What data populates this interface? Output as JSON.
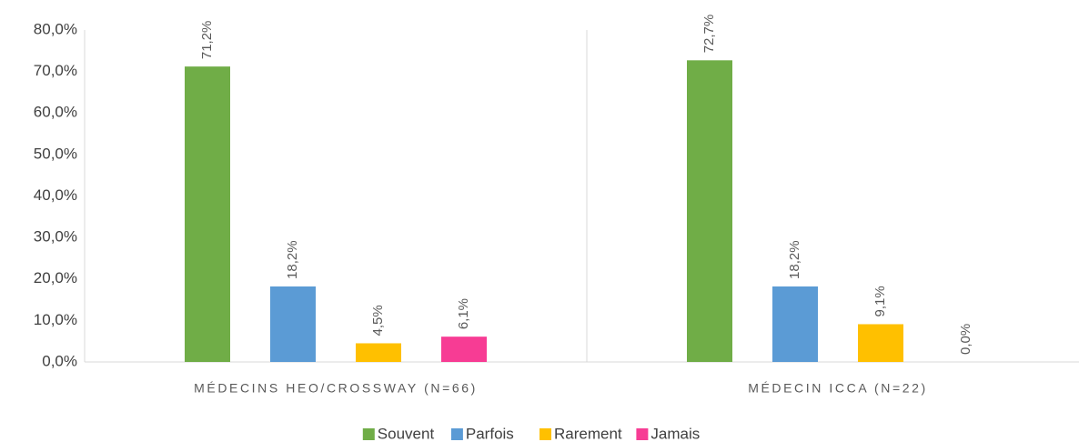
{
  "chart_data": {
    "type": "bar",
    "categories": [
      "MÉDECINS HEO/CROSSWAY (N=66)",
      "MÉDECIN ICCA (N=22)"
    ],
    "series": [
      {
        "name": "Souvent",
        "color": "#70ad47",
        "values": [
          71.2,
          72.7
        ],
        "value_labels": [
          "71,2%",
          "72,7%"
        ]
      },
      {
        "name": "Parfois",
        "color": "#5b9bd5",
        "values": [
          18.2,
          18.2
        ],
        "value_labels": [
          "18,2%",
          "18,2%"
        ]
      },
      {
        "name": "Rarement",
        "color": "#ffc000",
        "values": [
          4.5,
          9.1
        ],
        "value_labels": [
          "4,5%",
          "9,1%"
        ]
      },
      {
        "name": "Jamais",
        "color": "#f73c94",
        "values": [
          6.1,
          0.0
        ],
        "value_labels": [
          "6,1%",
          "0,0%"
        ]
      }
    ],
    "ylim": [
      0,
      80
    ],
    "yticks": [
      {
        "value": 0,
        "label": "0,0%"
      },
      {
        "value": 10,
        "label": "10,0%"
      },
      {
        "value": 20,
        "label": "20,0%"
      },
      {
        "value": 30,
        "label": "30,0%"
      },
      {
        "value": 40,
        "label": "40,0%"
      },
      {
        "value": 50,
        "label": "50,0%"
      },
      {
        "value": 60,
        "label": "60,0%"
      },
      {
        "value": 70,
        "label": "70,0%"
      },
      {
        "value": 80,
        "label": "80,0%"
      }
    ],
    "grid": false,
    "legend": "bottom"
  }
}
